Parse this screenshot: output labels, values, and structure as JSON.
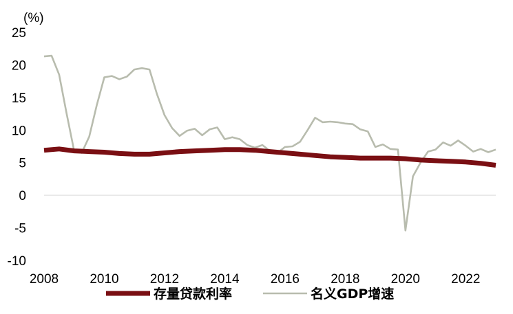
{
  "chart_data": {
    "type": "line",
    "title": "",
    "xlabel": "",
    "ylabel": "",
    "unit_label": "(%)",
    "xlim": [
      2008,
      2023
    ],
    "ylim": [
      -10,
      25
    ],
    "x_ticks": [
      2008,
      2010,
      2012,
      2014,
      2016,
      2018,
      2020,
      2022
    ],
    "y_ticks": [
      25,
      20,
      15,
      10,
      5,
      0,
      -5,
      -10
    ],
    "grid": false,
    "zero_line": true,
    "legend_position": "bottom",
    "series": [
      {
        "name": "存量贷款利率",
        "color": "#7a0f13",
        "x": [
          2008.0,
          2008.5,
          2009.0,
          2009.5,
          2010.0,
          2010.5,
          2011.0,
          2011.5,
          2012.0,
          2012.5,
          2013.0,
          2013.5,
          2014.0,
          2014.5,
          2015.0,
          2015.5,
          2016.0,
          2016.5,
          2017.0,
          2017.5,
          2018.0,
          2018.5,
          2019.0,
          2019.5,
          2020.0,
          2020.5,
          2021.0,
          2021.5,
          2022.0,
          2022.5,
          2023.0
        ],
        "y": [
          6.9,
          7.1,
          6.8,
          6.7,
          6.6,
          6.4,
          6.3,
          6.3,
          6.5,
          6.7,
          6.8,
          6.9,
          7.0,
          7.0,
          6.9,
          6.7,
          6.5,
          6.3,
          6.1,
          5.9,
          5.8,
          5.7,
          5.7,
          5.7,
          5.6,
          5.4,
          5.3,
          5.2,
          5.1,
          4.9,
          4.6
        ]
      },
      {
        "name": "名义GDP增速",
        "color": "#b8bcae",
        "x": [
          2008.0,
          2008.25,
          2008.5,
          2008.75,
          2009.0,
          2009.25,
          2009.5,
          2009.75,
          2010.0,
          2010.25,
          2010.5,
          2010.75,
          2011.0,
          2011.25,
          2011.5,
          2011.75,
          2012.0,
          2012.25,
          2012.5,
          2012.75,
          2013.0,
          2013.25,
          2013.5,
          2013.75,
          2014.0,
          2014.25,
          2014.5,
          2014.75,
          2015.0,
          2015.25,
          2015.5,
          2015.75,
          2016.0,
          2016.25,
          2016.5,
          2016.75,
          2017.0,
          2017.25,
          2017.5,
          2017.75,
          2018.0,
          2018.25,
          2018.5,
          2018.75,
          2019.0,
          2019.25,
          2019.5,
          2019.75,
          2020.0,
          2020.25,
          2020.5,
          2020.75,
          2021.0,
          2021.25,
          2021.5,
          2021.75,
          2022.0,
          2022.25,
          2022.5,
          2022.75,
          2023.0
        ],
        "y": [
          21.3,
          21.4,
          18.5,
          12.5,
          6.8,
          6.5,
          9.0,
          13.8,
          18.1,
          18.3,
          17.8,
          18.2,
          19.3,
          19.5,
          19.3,
          15.5,
          12.3,
          10.3,
          9.1,
          9.9,
          10.2,
          9.2,
          10.1,
          10.4,
          8.6,
          8.9,
          8.6,
          7.7,
          7.3,
          7.7,
          6.8,
          6.5,
          7.4,
          7.5,
          8.2,
          10.0,
          11.9,
          11.2,
          11.3,
          11.2,
          11.0,
          10.9,
          10.1,
          9.8,
          7.4,
          7.8,
          7.1,
          7.0,
          -5.4,
          2.9,
          5.0,
          6.7,
          7.0,
          8.1,
          7.6,
          8.4,
          7.6,
          6.7,
          7.1,
          6.6,
          7.0
        ]
      }
    ]
  }
}
